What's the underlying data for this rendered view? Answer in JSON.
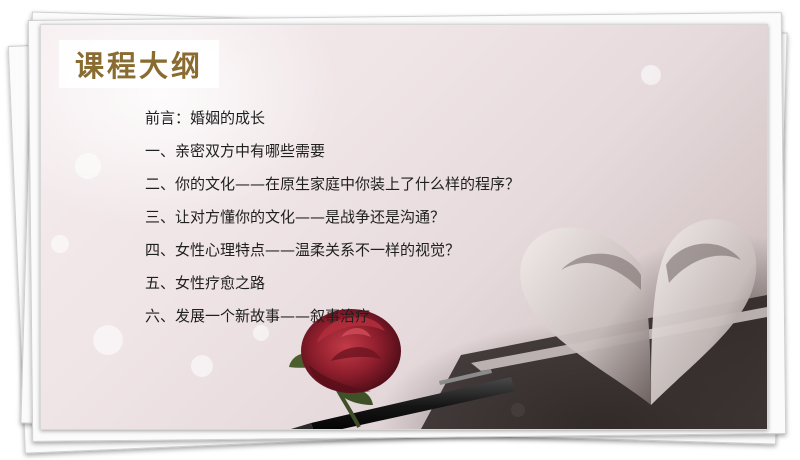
{
  "slide": {
    "title": "课程大纲",
    "outline": [
      "前言：婚姻的成长",
      "一、亲密双方中有哪些需要",
      "二、你的文化——在原生家庭中你装上了什么样的程序？",
      "三、让对方懂你的文化——是战争还是沟通？",
      "四、女性心理特点——温柔关系不一样的视觉？",
      "五、女性疗愈之路",
      "六、发展一个新故事——叙事治疗"
    ]
  },
  "colors": {
    "title": "#8a6b30",
    "text": "#1f1f1f",
    "rose": "#8e1e2c",
    "background": "#efe4e6"
  },
  "imagery": {
    "photo": "heart-shaped-book-pages-with-red-rose-and-pen",
    "frame": "stacked-paper-sheets"
  }
}
